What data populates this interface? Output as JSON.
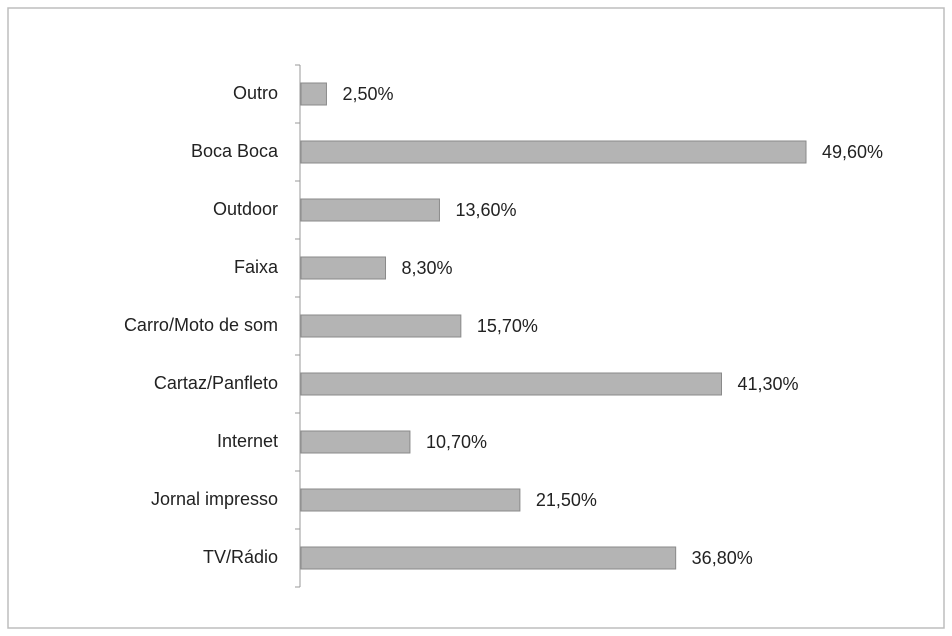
{
  "chart_data": {
    "type": "bar",
    "orientation": "horizontal",
    "categories": [
      "Outro",
      "Boca Boca",
      "Outdoor",
      "Faixa",
      "Carro/Moto de  som",
      "Cartaz/Panfleto",
      "Internet",
      "Jornal impresso",
      "TV/Rádio"
    ],
    "values": [
      2.5,
      49.6,
      13.6,
      8.3,
      15.7,
      41.3,
      10.7,
      21.5,
      36.8
    ],
    "value_labels": [
      "2,50%",
      "49,60%",
      "13,60%",
      "8,30%",
      "15,70%",
      "41,30%",
      "10,70%",
      "21,50%",
      "36,80%"
    ],
    "color": "#b4b4b4"
  }
}
